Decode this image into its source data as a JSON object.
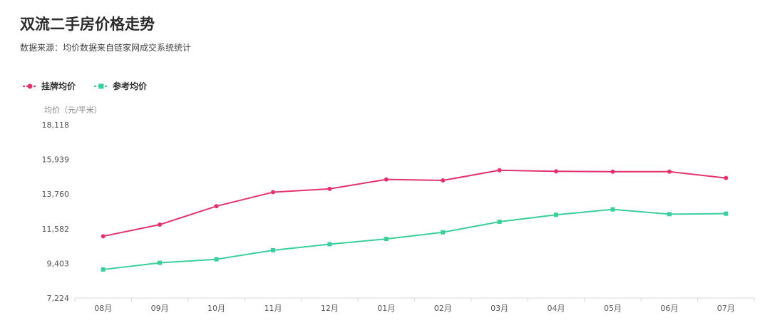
{
  "header": {
    "title": "双流二手房价格走势",
    "subtitle": "数据来源：均价数据来自链家网成交系统统计"
  },
  "colors": {
    "listing": "#e2336b",
    "reference": "#3ccf9a",
    "axis": "#d9d9d9"
  },
  "chart_data": {
    "type": "line",
    "ylabel": "均价（元/平米）",
    "categories": [
      "08月",
      "09月",
      "10月",
      "11月",
      "12月",
      "01月",
      "02月",
      "03月",
      "04月",
      "05月",
      "06月",
      "07月"
    ],
    "yticks": [
      "7,224",
      "9,403",
      "11,582",
      "13,760",
      "15,939",
      "18,118"
    ],
    "ylim": [
      7224,
      18118
    ],
    "legend_position": "top-left",
    "grid": false,
    "series": [
      {
        "name": "挂牌均价",
        "marker": "circle",
        "values": [
          11110,
          11840,
          13000,
          13880,
          14090,
          14680,
          14620,
          15260,
          15190,
          15170,
          15170,
          14770
        ]
      },
      {
        "name": "参考均价",
        "marker": "square",
        "values": [
          9020,
          9440,
          9660,
          10230,
          10610,
          10940,
          11360,
          12020,
          12460,
          12800,
          12500,
          12530
        ]
      }
    ]
  }
}
